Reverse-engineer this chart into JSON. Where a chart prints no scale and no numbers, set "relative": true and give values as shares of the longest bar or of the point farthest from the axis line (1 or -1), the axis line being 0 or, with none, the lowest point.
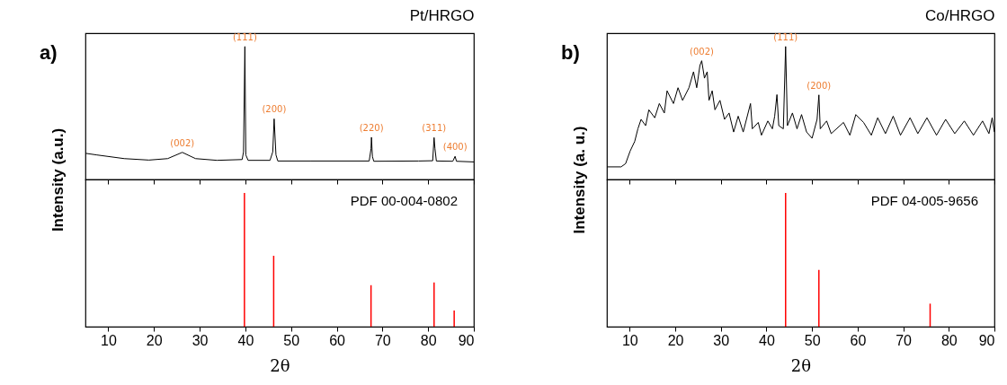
{
  "chart_data": [
    {
      "type": "line",
      "title": "Pt/HRGO",
      "relative": true,
      "color": "#000000",
      "xlim": [
        5,
        90
      ],
      "xticks": [
        10,
        20,
        30,
        40,
        50,
        60,
        70,
        80,
        90
      ],
      "tick_labels": false,
      "x": [
        5,
        7.4,
        13.5,
        18.9,
        23,
        26.2,
        29.1,
        33.8,
        39.3,
        39.6,
        39.9,
        40.1,
        40.6,
        45.4,
        46.0,
        46.3,
        46.7,
        47.1,
        54.2,
        67.1,
        67.5,
        67.6,
        67.8,
        68.1,
        77.9,
        81.0,
        81.3,
        81.5,
        81.8,
        85.4,
        85.9,
        86.2,
        90
      ],
      "values": [
        0.197,
        0.185,
        0.157,
        0.146,
        0.157,
        0.204,
        0.157,
        0.144,
        0.15,
        0.208,
        1.0,
        0.185,
        0.144,
        0.144,
        0.208,
        0.456,
        0.185,
        0.139,
        0.139,
        0.139,
        0.231,
        0.317,
        0.174,
        0.137,
        0.139,
        0.141,
        0.315,
        0.231,
        0.139,
        0.137,
        0.174,
        0.137,
        0.132
      ],
      "annotations": [
        "a)",
        {
          "text": "(002)",
          "x": 26.2,
          "y": 0.204
        },
        {
          "text": "(111)",
          "x": 39.9,
          "y": 1.0
        },
        {
          "text": "(200)",
          "x": 46.3,
          "y": 0.456
        },
        {
          "text": "(220)",
          "x": 67.6,
          "y": 0.317
        },
        {
          "text": "(311)",
          "x": 81.3,
          "y": 0.315
        },
        {
          "text": "(400)",
          "x": 85.9,
          "y": 0.174
        }
      ]
    },
    {
      "type": "bar",
      "relative": true,
      "color": "#ff0000",
      "xlim": [
        5,
        90
      ],
      "xticks": [
        10,
        20,
        30,
        40,
        50,
        60,
        70,
        80,
        90
      ],
      "tick_labels": "x",
      "xlabel": "2θ",
      "ylabel": "Intensity (a.u.)",
      "x": [
        39.8,
        46.2,
        67.5,
        81.3,
        85.7
      ],
      "values": [
        1,
        0.53,
        0.31,
        0.33,
        0.12
      ],
      "annotations": [
        "PDF 00-004-0802"
      ]
    },
    {
      "type": "line",
      "title": "Co/HRGO",
      "relative": true,
      "color": "#000000",
      "xlim": [
        5,
        90
      ],
      "xticks": [
        10,
        20,
        30,
        40,
        50,
        60,
        70,
        80,
        90
      ],
      "tick_labels": false,
      "x": [
        5,
        8.1,
        9.1,
        10.1,
        11.1,
        11.8,
        12.5,
        13.5,
        14.2,
        15.5,
        16.5,
        17.6,
        18.2,
        19.6,
        20.6,
        21.6,
        23.0,
        24.0,
        24.7,
        25.4,
        25.8,
        26.4,
        27.0,
        27.4,
        28.1,
        28.7,
        29.8,
        30.8,
        31.8,
        32.8,
        33.8,
        34.9,
        36.5,
        36.9,
        38.2,
        38.9,
        40.3,
        41.3,
        41.8,
        42.3,
        42.7,
        43.7,
        44.2,
        44.6,
        45.7,
        46.7,
        47.7,
        48.8,
        50.0,
        51.1,
        51.5,
        51.8,
        53.2,
        54.2,
        56.9,
        58.3,
        59.6,
        61.3,
        63.0,
        64.4,
        66.1,
        67.8,
        69.4,
        71.5,
        73.2,
        75.2,
        77.3,
        79.3,
        81.3,
        83.4,
        85.4,
        87.4,
        88.8,
        89.5,
        90
      ],
      "values": [
        0.095,
        0.095,
        0.119,
        0.214,
        0.286,
        0.381,
        0.452,
        0.405,
        0.524,
        0.464,
        0.571,
        0.5,
        0.667,
        0.571,
        0.69,
        0.595,
        0.69,
        0.81,
        0.69,
        0.857,
        0.893,
        0.762,
        0.81,
        0.595,
        0.667,
        0.524,
        0.595,
        0.452,
        0.5,
        0.357,
        0.476,
        0.357,
        0.571,
        0.381,
        0.429,
        0.333,
        0.44,
        0.381,
        0.476,
        0.638,
        0.405,
        0.381,
        1.0,
        0.405,
        0.5,
        0.381,
        0.488,
        0.357,
        0.31,
        0.452,
        0.636,
        0.381,
        0.44,
        0.345,
        0.429,
        0.333,
        0.488,
        0.429,
        0.333,
        0.464,
        0.345,
        0.476,
        0.333,
        0.464,
        0.345,
        0.464,
        0.333,
        0.452,
        0.345,
        0.44,
        0.333,
        0.44,
        0.345,
        0.464,
        0.357
      ],
      "annotations": [
        "b)",
        {
          "text": "(002)",
          "x": 25.8,
          "y": 0.893
        },
        {
          "text": "(111)",
          "x": 44.2,
          "y": 1.0
        },
        {
          "text": "(200)",
          "x": 51.5,
          "y": 0.636
        }
      ]
    },
    {
      "type": "bar",
      "relative": true,
      "color": "#ff0000",
      "xlim": [
        5,
        90
      ],
      "xticks": [
        10,
        20,
        30,
        40,
        50,
        60,
        70,
        80,
        90
      ],
      "tick_labels": "x",
      "xlabel": "2θ",
      "ylabel": "Intensity (a. u.)",
      "x": [
        44.2,
        51.5,
        75.9
      ],
      "values": [
        1,
        0.425,
        0.172
      ],
      "annotations": [
        "PDF 04-005-9656"
      ]
    }
  ]
}
